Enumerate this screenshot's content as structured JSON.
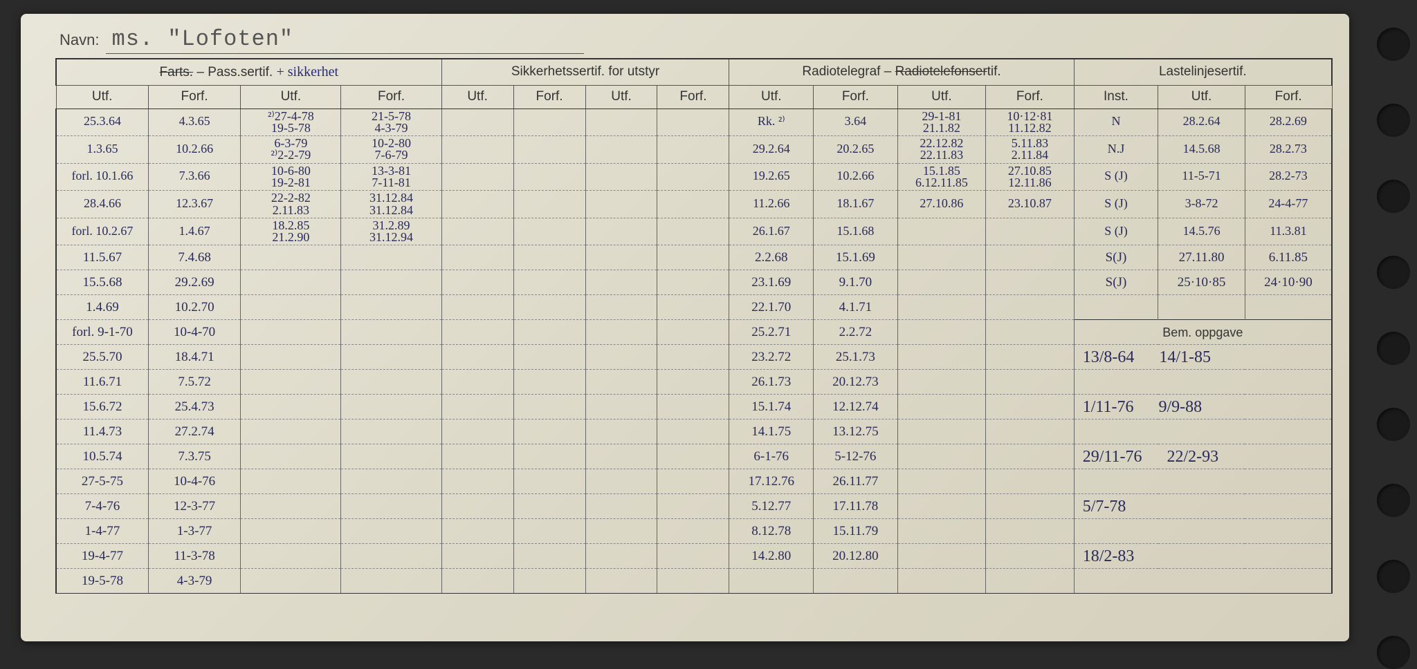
{
  "navn_label": "Navn:",
  "navn_value": "ms. \"Lofoten\"",
  "header_groups": {
    "g1_strike": "Farts.",
    "g1_rest": " – Pass.sertif.",
    "g1_annot": " + sikkerhet",
    "g2": "Sikkerhetssertif. for utstyr",
    "g3a": "Radiotelegraf – ",
    "g3_strike": "Radiotelefonser",
    "g3b": "tif.",
    "g4": "Lastelinjesertif."
  },
  "subheaders": {
    "utf": "Utf.",
    "forf": "Forf.",
    "inst": "Inst."
  },
  "bem_oppgave": "Bem. oppgave",
  "rows": [
    {
      "c1": "25.3.64",
      "c2": "4.3.65",
      "c3": "²⁾27-4-78",
      "c4": "21-5-78",
      "c9": "Rk. ²⁾",
      "c10": "3.64",
      "c11": "29-1-81",
      "c12": "10·12·81",
      "c13": "N",
      "c14": "28.2.64",
      "c15": "28.2.69"
    },
    {
      "c1": "",
      "c2": "",
      "c3": "19-5-78",
      "c4": "4-3-79",
      "c9": "",
      "c10": "",
      "c11": "21.1.82",
      "c12": "11.12.82",
      "c13": "",
      "c14": "",
      "c15": ""
    },
    {
      "c1": "1.3.65",
      "c2": "10.2.66",
      "c3": "6-3-79",
      "c4": "10-2-80",
      "c9": "29.2.64",
      "c10": "20.2.65",
      "c11": "22.12.82",
      "c12": "5.11.83",
      "c13": "N.J",
      "c14": "14.5.68",
      "c15": "28.2.73"
    },
    {
      "c1": "",
      "c2": "",
      "c3": "²⁾2-2-79",
      "c4": "7-6-79",
      "c9": "",
      "c10": "",
      "c11": "22.11.83",
      "c12": "2.11.84",
      "c13": "",
      "c14": "",
      "c15": ""
    },
    {
      "c1": "forl. 10.1.66",
      "c2": "7.3.66",
      "c3": "10-6-80",
      "c4": "13-3-81",
      "c9": "19.2.65",
      "c10": "10.2.66",
      "c11": "15.1.85",
      "c12": "27.10.85",
      "c13": "S (J)",
      "c14": "11-5-71",
      "c15": "28.2-73"
    },
    {
      "c1": "",
      "c2": "",
      "c3": "19-2-81",
      "c4": "7-11-81",
      "c9": "",
      "c10": "",
      "c11": "6.12.11.85",
      "c12": "12.11.86",
      "c13": "",
      "c14": "",
      "c15": ""
    },
    {
      "c1": "28.4.66",
      "c2": "12.3.67",
      "c3": "22-2-82",
      "c4": "31.12.84",
      "c9": "11.2.66",
      "c10": "18.1.67",
      "c11": "27.10.86",
      "c12": "23.10.87",
      "c13": "S (J)",
      "c14": "3-8-72",
      "c15": "24-4-77"
    },
    {
      "c1": "",
      "c2": "",
      "c3": "2.11.83",
      "c4": "31.12.84",
      "c9": "",
      "c10": "",
      "c11": "",
      "c12": "",
      "c13": "",
      "c14": "",
      "c15": ""
    },
    {
      "c1": "forl. 10.2.67",
      "c2": "1.4.67",
      "c3": "18.2.85",
      "c4": "31.2.89",
      "c9": "26.1.67",
      "c10": "15.1.68",
      "c11": "",
      "c12": "",
      "c13": "S (J)",
      "c14": "14.5.76",
      "c15": "11.3.81"
    },
    {
      "c1": "",
      "c2": "",
      "c3": "21.2.90",
      "c4": "31.12.94",
      "c9": "",
      "c10": "",
      "c11": "",
      "c12": "",
      "c13": "",
      "c14": "",
      "c15": ""
    },
    {
      "c1": "11.5.67",
      "c2": "7.4.68",
      "c3": "",
      "c4": "",
      "c9": "2.2.68",
      "c10": "15.1.69",
      "c11": "",
      "c12": "",
      "c13": "S(J)",
      "c14": "27.11.80",
      "c15": "6.11.85"
    },
    {
      "c1": "15.5.68",
      "c2": "29.2.69",
      "c3": "",
      "c4": "",
      "c9": "23.1.69",
      "c10": "9.1.70",
      "c11": "",
      "c12": "",
      "c13": "S(J)",
      "c14": "25·10·85",
      "c15": "24·10·90"
    },
    {
      "c1": "1.4.69",
      "c2": "10.2.70",
      "c3": "",
      "c4": "",
      "c9": "22.1.70",
      "c10": "4.1.71",
      "c11": "",
      "c12": "",
      "c13": "",
      "c14": "",
      "c15": ""
    },
    {
      "c1": "forl. 9-1-70",
      "c2": "10-4-70",
      "c3": "",
      "c4": "",
      "c9": "25.2.71",
      "c10": "2.2.72",
      "c11": "",
      "c12": "",
      "c13s": "BEM"
    },
    {
      "c1": "25.5.70",
      "c2": "18.4.71",
      "c3": "",
      "c4": "",
      "c9": "23.2.72",
      "c10": "25.1.73",
      "c11": "",
      "c12": "",
      "c13": "13/8-64",
      "c14": "",
      "c15": "14/1-85"
    },
    {
      "c1": "11.6.71",
      "c2": "7.5.72",
      "c3": "",
      "c4": "",
      "c9": "26.1.73",
      "c10": "20.12.73",
      "c11": "",
      "c12": "",
      "c13": "",
      "c14": "",
      "c15": ""
    },
    {
      "c1": "15.6.72",
      "c2": "25.4.73",
      "c3": "",
      "c4": "",
      "c9": "15.1.74",
      "c10": "12.12.74",
      "c11": "",
      "c12": "",
      "c13": "1/11-76",
      "c14": "",
      "c15": "9/9-88"
    },
    {
      "c1": "11.4.73",
      "c2": "27.2.74",
      "c3": "",
      "c4": "",
      "c9": "14.1.75",
      "c10": "13.12.75",
      "c11": "",
      "c12": "",
      "c13": "",
      "c14": "",
      "c15": ""
    },
    {
      "c1": "10.5.74",
      "c2": "7.3.75",
      "c3": "",
      "c4": "",
      "c9": "6-1-76",
      "c10": "5-12-76",
      "c11": "",
      "c12": "",
      "c13": "29/11-76",
      "c14": "",
      "c15": "22/2-93"
    },
    {
      "c1": "27-5-75",
      "c2": "10-4-76",
      "c3": "",
      "c4": "",
      "c9": "17.12.76",
      "c10": "26.11.77",
      "c11": "",
      "c12": "",
      "c13": "",
      "c14": "",
      "c15": ""
    },
    {
      "c1": "7-4-76",
      "c2": "12-3-77",
      "c3": "",
      "c4": "",
      "c9": "5.12.77",
      "c10": "17.11.78",
      "c11": "",
      "c12": "",
      "c13": "5/7-78",
      "c14": "",
      "c15": ""
    },
    {
      "c1": "1-4-77",
      "c2": "1-3-77",
      "c3": "",
      "c4": "",
      "c9": "8.12.78",
      "c10": "15.11.79",
      "c11": "",
      "c12": "",
      "c13": "",
      "c14": "",
      "c15": ""
    },
    {
      "c1": "19-4-77",
      "c2": "11-3-78",
      "c3": "",
      "c4": "",
      "c9": "14.2.80",
      "c10": "20.12.80",
      "c11": "",
      "c12": "",
      "c13": "18/2-83",
      "c14": "",
      "c15": ""
    },
    {
      "c1": "19-5-78",
      "c2": "4-3-79",
      "c3": "",
      "c4": "",
      "c9": "",
      "c10": "",
      "c11": "",
      "c12": "",
      "c13": "",
      "c14": "",
      "c15": ""
    }
  ]
}
